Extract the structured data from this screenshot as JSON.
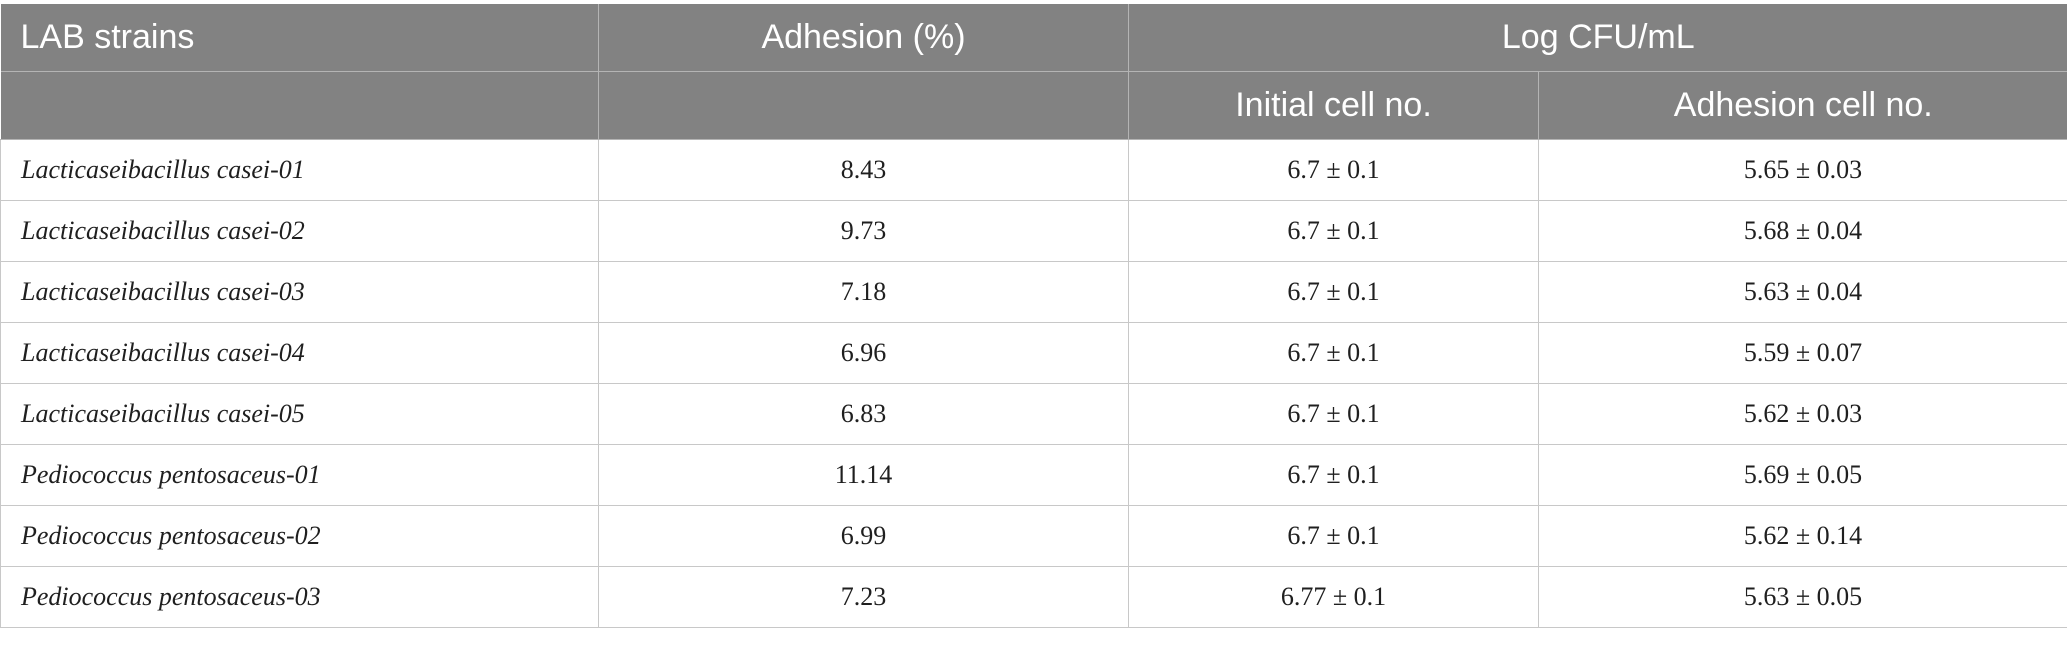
{
  "table": {
    "header": {
      "strain_label": "LAB strains",
      "adhesion_label": "Adhesion (%)",
      "log_label": "Log CFU/mL",
      "initial_label": "Initial cell no.",
      "adhesion_cell_label": "Adhesion cell no."
    },
    "rows": [
      {
        "strain": "Lacticaseibacillus casei-01",
        "adhesion": "8.43",
        "initial": "6.7 ± 0.1",
        "adhesion_cell": "5.65 ± 0.03"
      },
      {
        "strain": "Lacticaseibacillus casei-02",
        "adhesion": "9.73",
        "initial": "6.7 ± 0.1",
        "adhesion_cell": "5.68 ± 0.04"
      },
      {
        "strain": "Lacticaseibacillus casei-03",
        "adhesion": "7.18",
        "initial": "6.7 ± 0.1",
        "adhesion_cell": "5.63 ± 0.04"
      },
      {
        "strain": "Lacticaseibacillus casei-04",
        "adhesion": "6.96",
        "initial": "6.7 ± 0.1",
        "adhesion_cell": "5.59 ± 0.07"
      },
      {
        "strain": "Lacticaseibacillus casei-05",
        "adhesion": "6.83",
        "initial": "6.7 ± 0.1",
        "adhesion_cell": "5.62 ± 0.03"
      },
      {
        "strain": "Pediococcus pentosaceus-01",
        "adhesion": "11.14",
        "initial": "6.7 ± 0.1",
        "adhesion_cell": "5.69 ± 0.05"
      },
      {
        "strain": "Pediococcus pentosaceus-02",
        "adhesion": "6.99",
        "initial": "6.7 ± 0.1",
        "adhesion_cell": "5.62 ± 0.14"
      },
      {
        "strain": "Pediococcus pentosaceus-03",
        "adhesion": "7.23",
        "initial": "6.77 ± 0.1",
        "adhesion_cell": "5.63 ± 0.05"
      }
    ]
  }
}
